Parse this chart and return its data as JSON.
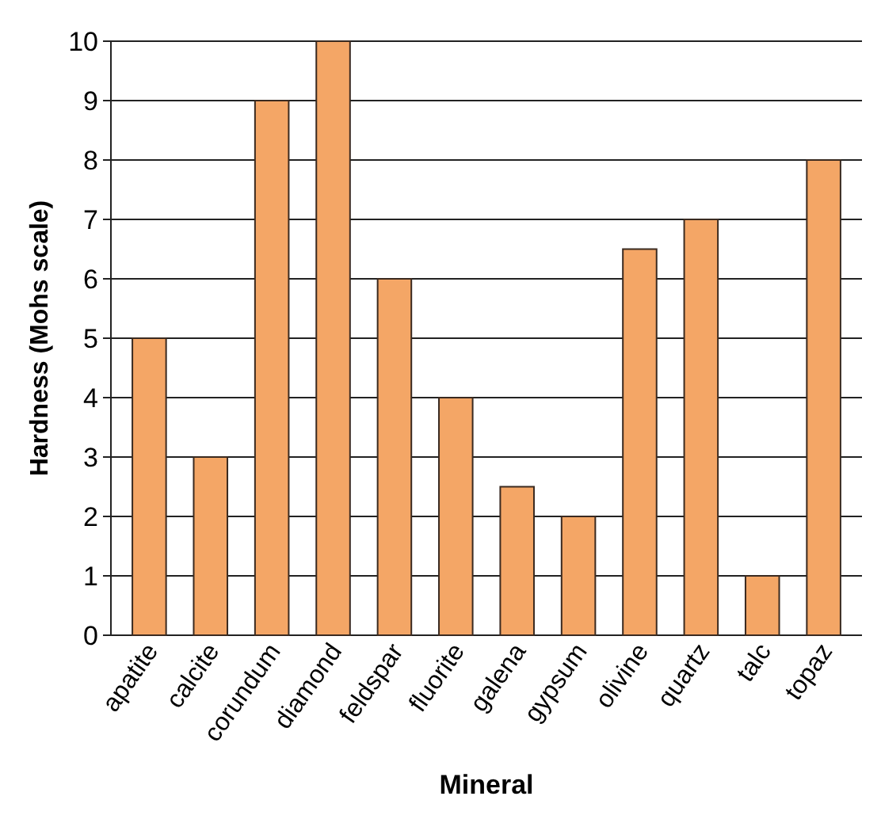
{
  "chart_data": {
    "type": "bar",
    "xlabel": "Mineral",
    "ylabel": "Hardness (Mohs scale)",
    "categories": [
      "apatite",
      "calcite",
      "corundum",
      "diamond",
      "feldspar",
      "fluorite",
      "galena",
      "gypsum",
      "olivine",
      "quartz",
      "talc",
      "topaz"
    ],
    "values": [
      5,
      3,
      9,
      10,
      6,
      4,
      2.5,
      2,
      6.5,
      7,
      1,
      8
    ],
    "color": "#f4a666",
    "ylim": [
      0,
      10
    ],
    "yticks": [
      0,
      1,
      2,
      3,
      4,
      5,
      6,
      7,
      8,
      9,
      10
    ],
    "grid": "y"
  }
}
